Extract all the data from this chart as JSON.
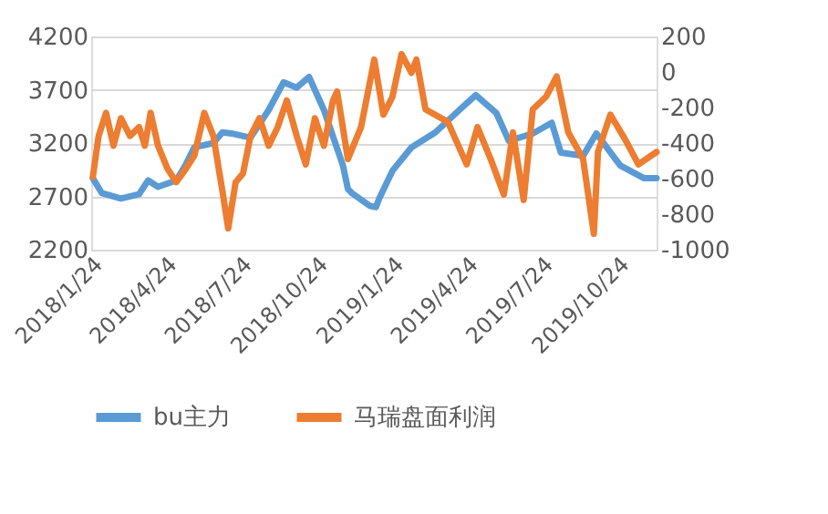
{
  "chart_data": {
    "type": "line",
    "grid": "y",
    "legend": "bottom",
    "line_style": "solid",
    "marker": "none",
    "xlim": [
      "2018-01-24",
      "2019-12-10"
    ],
    "xticks": [
      {
        "value": "2018-01-24",
        "label": "2018/1/24"
      },
      {
        "value": "2018-04-24",
        "label": "2018/4/24"
      },
      {
        "value": "2018-07-24",
        "label": "2018/7/24"
      },
      {
        "value": "2018-10-24",
        "label": "2018/10/24"
      },
      {
        "value": "2019-01-24",
        "label": "2019/1/24"
      },
      {
        "value": "2019-04-24",
        "label": "2019/4/24"
      },
      {
        "value": "2019-07-24",
        "label": "2019/7/24"
      },
      {
        "value": "2019-10-24",
        "label": "2019/10/24"
      }
    ],
    "ylim": [
      2200,
      4200
    ],
    "yticks": [
      2200,
      2700,
      3200,
      3700,
      4200
    ],
    "y2lim": [
      -1000,
      200
    ],
    "y2ticks": [
      -1000,
      -800,
      -600,
      -400,
      -200,
      0,
      200
    ],
    "series": [
      {
        "name": "bu主力",
        "color": "#5b9bd5",
        "x": [
          "2018-01-26",
          "2018-02-06",
          "2018-03-01",
          "2018-03-23",
          "2018-04-03",
          "2018-04-15",
          "2018-04-26",
          "2018-05-07",
          "2018-05-18",
          "2018-05-29",
          "2018-06-21",
          "2018-07-02",
          "2018-07-13",
          "2018-08-05",
          "2018-08-27",
          "2018-09-14",
          "2018-09-30",
          "2018-10-15",
          "2018-11-02",
          "2018-11-25",
          "2018-12-01",
          "2018-12-06",
          "2018-12-28",
          "2019-01-04",
          "2019-01-08",
          "2019-01-24",
          "2019-02-16",
          "2019-03-17",
          "2019-04-15",
          "2019-05-05",
          "2019-05-30",
          "2019-06-14",
          "2019-07-13",
          "2019-08-05",
          "2019-08-16",
          "2019-09-12",
          "2019-09-28",
          "2019-10-27",
          "2019-11-25",
          "2019-12-10"
        ],
        "values": [
          2870,
          2730,
          2680,
          2720,
          2850,
          2790,
          2820,
          2850,
          2990,
          3160,
          3200,
          3300,
          3290,
          3250,
          3510,
          3770,
          3720,
          3820,
          3510,
          2990,
          2770,
          2730,
          2610,
          2600,
          2680,
          2940,
          3160,
          3300,
          3510,
          3650,
          3480,
          3220,
          3290,
          3390,
          3110,
          3080,
          3290,
          2990,
          2870,
          2870
        ]
      },
      {
        "name": "马瑞盘面利润",
        "color": "#ed7d31",
        "axis": "y2",
        "x": [
          "2018-01-26",
          "2018-02-02",
          "2018-02-11",
          "2018-02-20",
          "2018-03-01",
          "2018-03-12",
          "2018-03-23",
          "2018-03-30",
          "2018-04-06",
          "2018-04-15",
          "2018-04-26",
          "2018-05-07",
          "2018-05-18",
          "2018-05-29",
          "2018-06-10",
          "2018-06-21",
          "2018-07-02",
          "2018-07-09",
          "2018-07-18",
          "2018-07-27",
          "2018-08-05",
          "2018-08-16",
          "2018-08-27",
          "2018-09-07",
          "2018-09-18",
          "2018-09-30",
          "2018-10-11",
          "2018-10-22",
          "2018-11-02",
          "2018-11-13",
          "2018-11-18",
          "2018-12-01",
          "2018-12-17",
          "2019-01-02",
          "2019-01-13",
          "2019-01-24",
          "2019-02-04",
          "2019-02-16",
          "2019-02-22",
          "2019-03-05",
          "2019-04-01",
          "2019-04-24",
          "2019-05-07",
          "2019-05-23",
          "2019-06-08",
          "2019-06-19",
          "2019-07-02",
          "2019-07-13",
          "2019-07-29",
          "2019-08-11",
          "2019-08-25",
          "2019-09-12",
          "2019-09-25",
          "2019-09-30",
          "2019-10-15",
          "2019-11-02",
          "2019-11-18",
          "2019-12-10"
        ],
        "values": [
          -590,
          -360,
          -230,
          -415,
          -260,
          -360,
          -310,
          -415,
          -230,
          -415,
          -540,
          -620,
          -550,
          -470,
          -230,
          -360,
          -670,
          -880,
          -620,
          -570,
          -360,
          -260,
          -415,
          -310,
          -160,
          -360,
          -520,
          -260,
          -415,
          -160,
          -110,
          -490,
          -310,
          70,
          -240,
          -140,
          100,
          -5,
          70,
          -210,
          -280,
          -520,
          -310,
          -490,
          -690,
          -340,
          -720,
          -210,
          -140,
          -25,
          -340,
          -490,
          -910,
          -450,
          -240,
          -380,
          -520,
          -450
        ]
      }
    ]
  }
}
